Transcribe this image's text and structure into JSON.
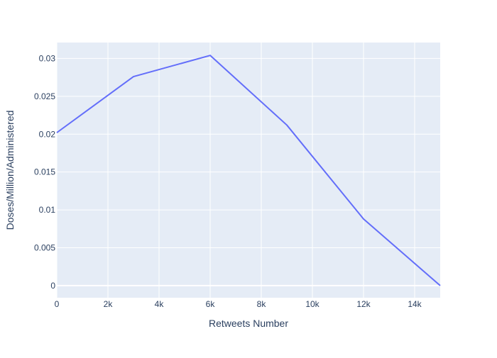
{
  "chart_data": {
    "type": "line",
    "title": "",
    "xlabel": "Retweets Number",
    "ylabel": "Doses/Million/Administered",
    "x": [
      0,
      3000,
      6000,
      9000,
      12000,
      15000
    ],
    "series": [
      {
        "values": [
          0.0202,
          0.0276,
          0.0304,
          0.0212,
          0.0088,
          0.0
        ]
      }
    ],
    "xlim": [
      0,
      15000
    ],
    "ylim": [
      -0.0016,
      0.0321
    ],
    "xticks": [
      0,
      2000,
      4000,
      6000,
      8000,
      10000,
      12000,
      14000
    ],
    "xtick_labels": [
      "0",
      "2k",
      "4k",
      "6k",
      "8k",
      "10k",
      "12k",
      "14k"
    ],
    "yticks": [
      0,
      0.005,
      0.01,
      0.015,
      0.02,
      0.025,
      0.03
    ],
    "ytick_labels": [
      "0",
      "0.005",
      "0.01",
      "0.015",
      "0.02",
      "0.025",
      "0.03"
    ],
    "grid": true,
    "legend": "none",
    "colors": {
      "line": "#636efa",
      "plot_background": "#e5ecf6",
      "grid": "#ffffff",
      "tick_text": "#2a3f5f",
      "axis_title": "#2a3f5f"
    }
  }
}
